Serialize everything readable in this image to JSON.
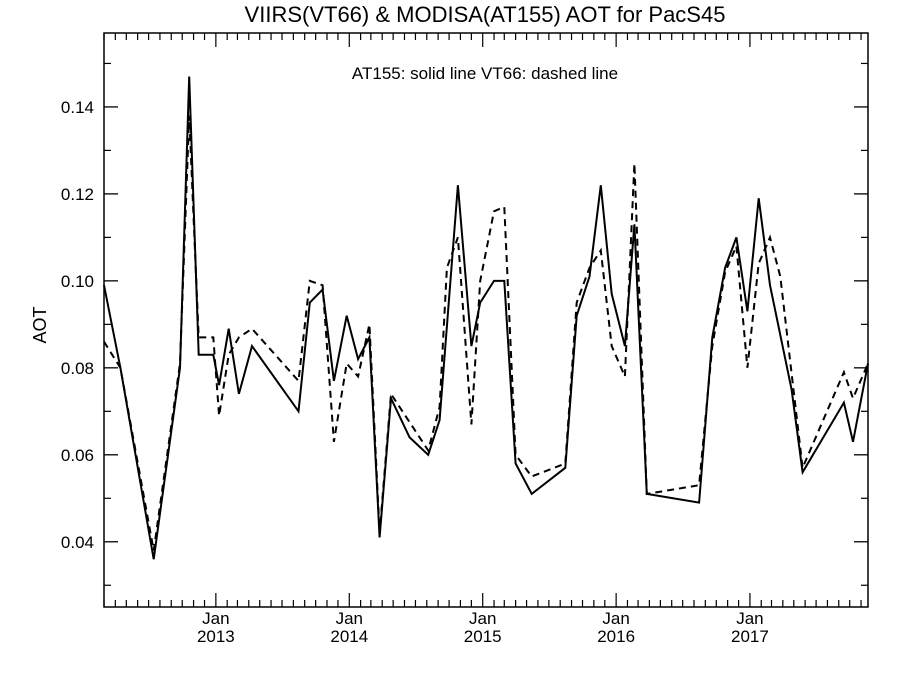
{
  "chart_data": {
    "type": "line",
    "title": "VIIRS(VT66) & MODISA(AT155)  AOT for PacS45",
    "ylabel": "AOT",
    "xlabel": "",
    "annotation": "AT155: solid line   VT66: dashed line",
    "ylim": [
      0.025,
      0.157
    ],
    "xlim": [
      "2012-03-01",
      "2017-11-20"
    ],
    "y_ticks": [
      0.04,
      0.06,
      0.08,
      0.1,
      0.12,
      0.14
    ],
    "y_tick_labels": [
      "0.04",
      "0.06",
      "0.08",
      "0.10",
      "0.12",
      "0.14"
    ],
    "x_ticks": [
      {
        "date": "2013-01-01",
        "month": "Jan",
        "year": "2013"
      },
      {
        "date": "2014-01-01",
        "month": "Jan",
        "year": "2014"
      },
      {
        "date": "2015-01-01",
        "month": "Jan",
        "year": "2015"
      },
      {
        "date": "2016-01-01",
        "month": "Jan",
        "year": "2016"
      },
      {
        "date": "2017-01-01",
        "month": "Jan",
        "year": "2017"
      }
    ],
    "grid": false,
    "series": [
      {
        "name": "AT155",
        "style": "solid",
        "points": [
          [
            "2012-03-01",
            0.099
          ],
          [
            "2012-04-15",
            0.08
          ],
          [
            "2012-07-15",
            0.036
          ],
          [
            "2012-09-25",
            0.08
          ],
          [
            "2012-10-20",
            0.147
          ],
          [
            "2012-11-15",
            0.083
          ],
          [
            "2012-12-25",
            0.083
          ],
          [
            "2013-01-10",
            0.076
          ],
          [
            "2013-02-05",
            0.089
          ],
          [
            "2013-03-05",
            0.074
          ],
          [
            "2013-04-10",
            0.085
          ],
          [
            "2013-08-15",
            0.07
          ],
          [
            "2013-09-15",
            0.095
          ],
          [
            "2013-10-20",
            0.098
          ],
          [
            "2013-11-20",
            0.077
          ],
          [
            "2013-12-25",
            0.092
          ],
          [
            "2014-01-25",
            0.082
          ],
          [
            "2014-02-25",
            0.087
          ],
          [
            "2014-03-25",
            0.041
          ],
          [
            "2014-04-25",
            0.073
          ],
          [
            "2014-06-15",
            0.064
          ],
          [
            "2014-08-05",
            0.06
          ],
          [
            "2014-09-05",
            0.068
          ],
          [
            "2014-10-25",
            0.122
          ],
          [
            "2014-12-01",
            0.085
          ],
          [
            "2014-12-25",
            0.095
          ],
          [
            "2015-02-01",
            0.1
          ],
          [
            "2015-03-01",
            0.1
          ],
          [
            "2015-04-01",
            0.058
          ],
          [
            "2015-05-15",
            0.051
          ],
          [
            "2015-08-15",
            0.057
          ],
          [
            "2015-09-15",
            0.092
          ],
          [
            "2015-10-20",
            0.101
          ],
          [
            "2015-11-20",
            0.122
          ],
          [
            "2015-12-20",
            0.097
          ],
          [
            "2016-01-25",
            0.085
          ],
          [
            "2016-02-20",
            0.113
          ],
          [
            "2016-03-25",
            0.051
          ],
          [
            "2016-08-15",
            0.049
          ],
          [
            "2016-09-20",
            0.087
          ],
          [
            "2016-10-25",
            0.103
          ],
          [
            "2016-11-25",
            0.11
          ],
          [
            "2016-12-25",
            0.093
          ],
          [
            "2017-01-25",
            0.119
          ],
          [
            "2017-02-25",
            0.099
          ],
          [
            "2017-04-25",
            0.075
          ],
          [
            "2017-05-25",
            0.056
          ],
          [
            "2017-09-15",
            0.072
          ],
          [
            "2017-10-10",
            0.063
          ],
          [
            "2017-11-20",
            0.081
          ]
        ]
      },
      {
        "name": "VT66",
        "style": "dashed",
        "points": [
          [
            "2012-03-01",
            0.086
          ],
          [
            "2012-04-15",
            0.08
          ],
          [
            "2012-07-15",
            0.038
          ],
          [
            "2012-09-25",
            0.081
          ],
          [
            "2012-10-20",
            0.138
          ],
          [
            "2012-11-15",
            0.087
          ],
          [
            "2012-12-25",
            0.087
          ],
          [
            "2013-01-10",
            0.069
          ],
          [
            "2013-02-05",
            0.083
          ],
          [
            "2013-03-05",
            0.087
          ],
          [
            "2013-04-10",
            0.089
          ],
          [
            "2013-08-15",
            0.077
          ],
          [
            "2013-09-15",
            0.1
          ],
          [
            "2013-10-20",
            0.099
          ],
          [
            "2013-11-20",
            0.063
          ],
          [
            "2013-12-25",
            0.081
          ],
          [
            "2014-01-25",
            0.078
          ],
          [
            "2014-02-25",
            0.09
          ],
          [
            "2014-03-25",
            0.042
          ],
          [
            "2014-04-25",
            0.074
          ],
          [
            "2014-08-05",
            0.061
          ],
          [
            "2014-09-05",
            0.071
          ],
          [
            "2014-09-25",
            0.103
          ],
          [
            "2014-10-25",
            0.11
          ],
          [
            "2014-12-01",
            0.067
          ],
          [
            "2014-12-25",
            0.1
          ],
          [
            "2015-02-01",
            0.116
          ],
          [
            "2015-03-01",
            0.117
          ],
          [
            "2015-04-01",
            0.06
          ],
          [
            "2015-05-15",
            0.055
          ],
          [
            "2015-08-15",
            0.058
          ],
          [
            "2015-09-15",
            0.095
          ],
          [
            "2015-10-20",
            0.103
          ],
          [
            "2015-11-20",
            0.107
          ],
          [
            "2015-12-20",
            0.085
          ],
          [
            "2016-01-25",
            0.078
          ],
          [
            "2016-02-20",
            0.127
          ],
          [
            "2016-03-25",
            0.051
          ],
          [
            "2016-08-15",
            0.053
          ],
          [
            "2016-09-20",
            0.085
          ],
          [
            "2016-10-25",
            0.102
          ],
          [
            "2016-11-25",
            0.108
          ],
          [
            "2016-12-25",
            0.08
          ],
          [
            "2017-01-25",
            0.104
          ],
          [
            "2017-02-25",
            0.11
          ],
          [
            "2017-03-25",
            0.101
          ],
          [
            "2017-05-25",
            0.057
          ],
          [
            "2017-09-15",
            0.079
          ],
          [
            "2017-10-10",
            0.073
          ],
          [
            "2017-11-20",
            0.081
          ]
        ]
      }
    ]
  }
}
